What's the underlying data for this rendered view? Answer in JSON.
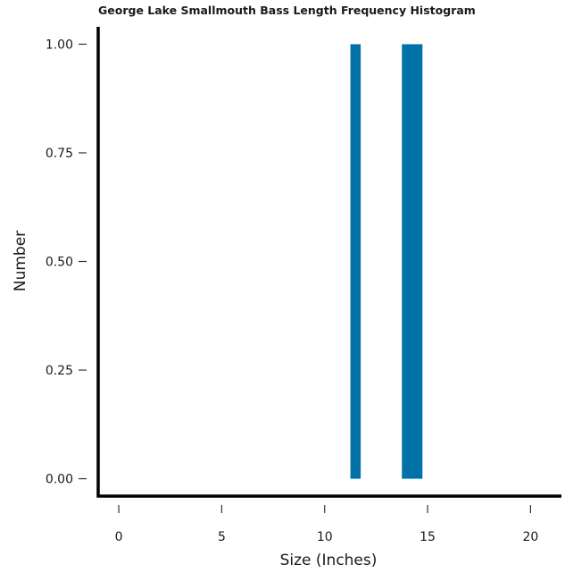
{
  "chart_data": {
    "type": "bar",
    "title": "George Lake Smallmouth Bass Length Frequency Histogram",
    "xlabel": "Size (Inches)",
    "ylabel": "Number",
    "xlim": [
      -1,
      21.5
    ],
    "ylim": [
      -0.04,
      1.04
    ],
    "x_ticks": [
      0,
      5,
      10,
      15,
      20
    ],
    "x_tick_labels": [
      "0",
      "5",
      "10",
      "15",
      "20"
    ],
    "y_ticks": [
      0,
      0.25,
      0.5,
      0.75,
      1.0
    ],
    "y_tick_labels": [
      "0.00",
      "0.25",
      "0.50",
      "0.75",
      "1.00"
    ],
    "bars": [
      {
        "x_start": 11.25,
        "x_end": 11.75,
        "value": 1
      },
      {
        "x_start": 13.75,
        "x_end": 14.75,
        "value": 1
      }
    ],
    "bar_color": "#0072a8",
    "axis_color": "#000000",
    "grid": false,
    "legend": "none"
  }
}
